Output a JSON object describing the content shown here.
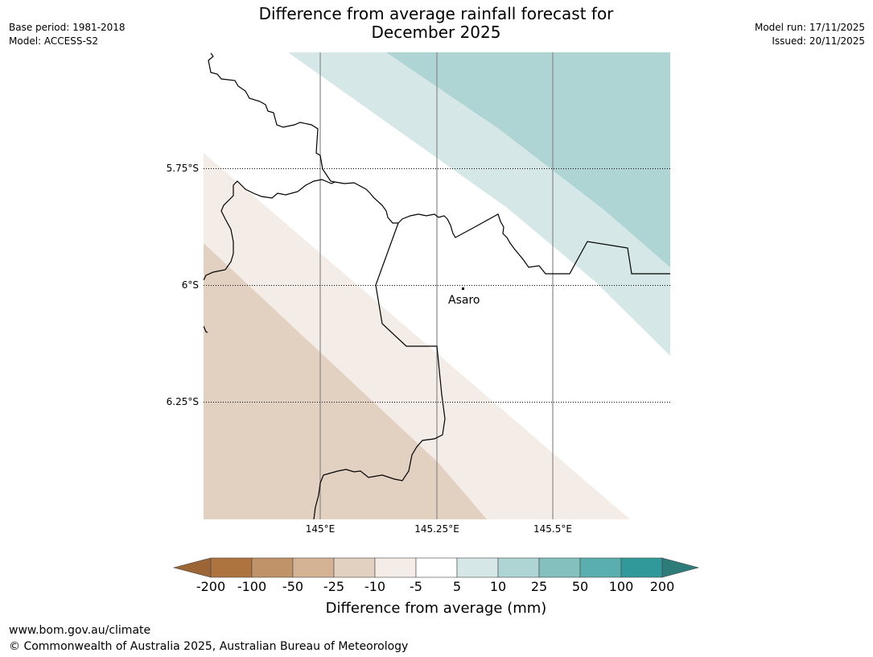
{
  "header": {
    "title_line1": "Difference from average rainfall forecast for",
    "title_line2": "December 2025",
    "base_period": "Base period: 1981-2018",
    "model": "Model: ACCESS-S2",
    "model_run": "Model run: 17/11/2025",
    "issued": "Issued: 20/11/2025"
  },
  "map": {
    "lat_labels": [
      "5.75°S",
      "6°S",
      "6.25°S"
    ],
    "lon_labels": [
      "145°E",
      "145.25°E",
      "145.5°E"
    ],
    "place": "Asaro",
    "band_colors": {
      "neg50": "#e2d1c0",
      "neg10": "#f4ede7",
      "pos10": "#d5e8e7",
      "pos25": "#aed4d4"
    }
  },
  "colorbar": {
    "ticks": [
      "-200",
      "-100",
      "-50",
      "-25",
      "-10",
      "-5",
      "5",
      "10",
      "25",
      "50",
      "100",
      "200"
    ],
    "colors": [
      "#9b6535",
      "#ae743f",
      "#c19368",
      "#d4b394",
      "#e2d1c0",
      "#f4ede7",
      "#ffffff",
      "#d5e8e7",
      "#aed4d4",
      "#83c0be",
      "#5baeae",
      "#32999a",
      "#2d7c7a"
    ],
    "label": "Difference from average (mm)"
  },
  "footer": {
    "url": "www.bom.gov.au/climate",
    "copyright": "© Commonwealth of Australia 2025, Australian Bureau of Meteorology"
  }
}
